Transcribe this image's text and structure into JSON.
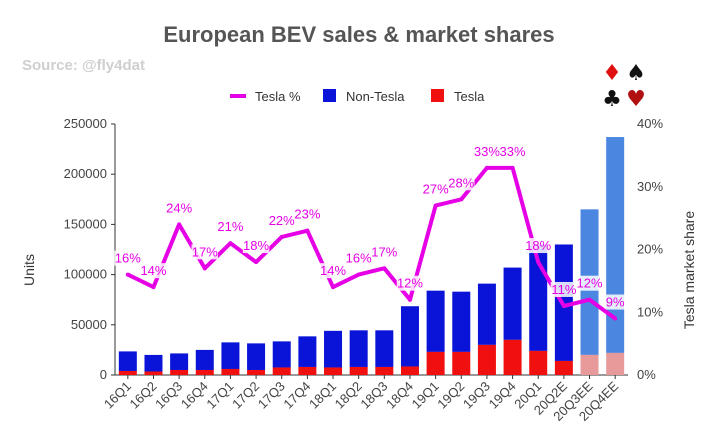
{
  "chart_data": {
    "type": "bar",
    "title": "European BEV sales & market shares",
    "subtitle": "Source: @fly4dat",
    "categories": [
      "16Q1",
      "16Q2",
      "16Q3",
      "16Q4",
      "17Q1",
      "17Q2",
      "17Q3",
      "17Q4",
      "18Q1",
      "18Q2",
      "18Q3",
      "18Q4",
      "19Q1",
      "19Q2",
      "19Q3",
      "19Q4",
      "20Q1",
      "20Q2E",
      "20Q3EE",
      "20Q4EE"
    ],
    "estimated_from_index": 18,
    "series": [
      {
        "name": "Non-Tesla",
        "stacked": true,
        "color": "#0a14d8",
        "estimate_color": "#4b86e0",
        "values": [
          19500,
          16500,
          16500,
          20000,
          26500,
          26500,
          26000,
          30500,
          36500,
          36500,
          36500,
          60000,
          61000,
          60000,
          61000,
          72000,
          106000,
          116000,
          145000,
          215000
        ]
      },
      {
        "name": "Tesla",
        "stacked": true,
        "color": "#f01010",
        "estimate_color": "#e89a9a",
        "values": [
          4000,
          3500,
          5000,
          5000,
          6000,
          5000,
          7500,
          8000,
          7500,
          8000,
          8000,
          8500,
          23000,
          23000,
          30000,
          35000,
          24000,
          14000,
          20000,
          22000
        ]
      },
      {
        "name": "Tesla %",
        "type": "line",
        "axis": "right",
        "color": "#e600e6",
        "values": [
          16,
          14,
          24,
          17,
          21,
          18,
          22,
          23,
          14,
          16,
          17,
          12,
          27,
          28,
          33,
          33,
          18,
          11,
          12,
          9
        ],
        "labels": [
          "16%",
          "14%",
          "24%",
          "17%",
          "21%",
          "18%",
          "22%",
          "23%",
          "14%",
          "16%",
          "17%",
          "12%",
          "27%",
          "28%",
          "33%",
          "33%",
          "18%",
          "11%",
          "12%",
          "9%"
        ]
      }
    ],
    "ylabel": "Units",
    "ylim": [
      0,
      250000
    ],
    "yticks": [
      "0",
      "50000",
      "100000",
      "150000",
      "200000",
      "250000"
    ],
    "y2label": "Tesla market share",
    "y2lim": [
      0,
      40
    ],
    "y2ticks": [
      "0%",
      "10%",
      "20%",
      "30%",
      "40%"
    ],
    "legend_position": "top",
    "grid": false
  },
  "logo": {
    "icon": "card-suits-icon",
    "suits": [
      "♦",
      "♠",
      "♣",
      "♥"
    ]
  }
}
